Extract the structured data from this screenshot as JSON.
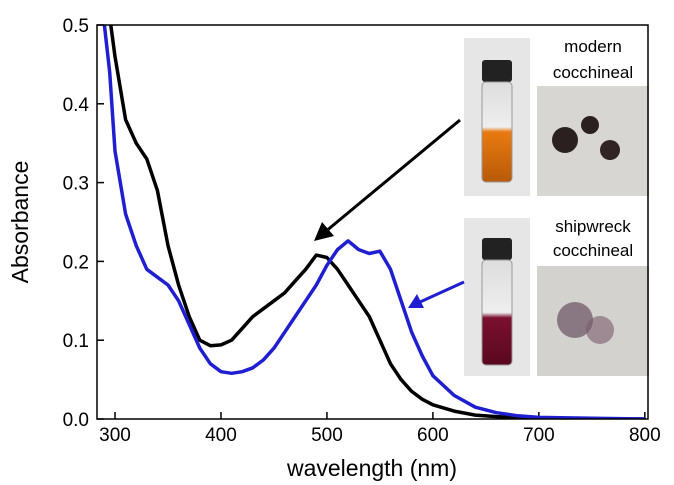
{
  "chart_data": {
    "type": "line",
    "xlabel": "wavelength (nm)",
    "ylabel": "Absorbance",
    "xlim": [
      283,
      803
    ],
    "ylim": [
      0,
      0.5
    ],
    "xticks": [
      300,
      400,
      500,
      600,
      700,
      800
    ],
    "yticks": [
      {
        "value": 0,
        "label": "0.0"
      },
      0.1,
      0.2,
      0.3,
      0.4,
      0.5
    ],
    "annotations": [
      "modern cocchineal",
      "shipwreck cocchineal"
    ],
    "series": [
      {
        "color": "#000000",
        "x": [
          296,
          300,
          310,
          320,
          330,
          340,
          350,
          360,
          370,
          380,
          390,
          400,
          410,
          420,
          430,
          440,
          450,
          460,
          470,
          480,
          490,
          500,
          510,
          520,
          530,
          540,
          550,
          560,
          570,
          580,
          590,
          600,
          620,
          640,
          660,
          680,
          700,
          750,
          800
        ],
        "values": [
          0.5,
          0.46,
          0.38,
          0.35,
          0.33,
          0.29,
          0.22,
          0.17,
          0.13,
          0.1,
          0.093,
          0.094,
          0.1,
          0.115,
          0.13,
          0.14,
          0.15,
          0.16,
          0.175,
          0.19,
          0.208,
          0.205,
          0.19,
          0.17,
          0.15,
          0.13,
          0.1,
          0.07,
          0.05,
          0.035,
          0.025,
          0.018,
          0.01,
          0.005,
          0.003,
          0.002,
          0.001,
          0,
          0
        ]
      },
      {
        "color": "#1f1fd0",
        "x": [
          290,
          295,
          300,
          310,
          320,
          330,
          340,
          350,
          360,
          370,
          380,
          390,
          400,
          410,
          420,
          430,
          440,
          450,
          460,
          470,
          480,
          490,
          500,
          510,
          520,
          530,
          540,
          550,
          560,
          570,
          580,
          590,
          600,
          620,
          640,
          660,
          680,
          700,
          750,
          800
        ],
        "values": [
          0.5,
          0.44,
          0.34,
          0.26,
          0.22,
          0.19,
          0.18,
          0.17,
          0.15,
          0.12,
          0.09,
          0.07,
          0.06,
          0.058,
          0.06,
          0.065,
          0.075,
          0.09,
          0.11,
          0.13,
          0.15,
          0.17,
          0.195,
          0.215,
          0.226,
          0.215,
          0.21,
          0.213,
          0.19,
          0.15,
          0.11,
          0.08,
          0.055,
          0.03,
          0.015,
          0.008,
          0.004,
          0.002,
          0.001,
          0
        ]
      }
    ]
  }
}
